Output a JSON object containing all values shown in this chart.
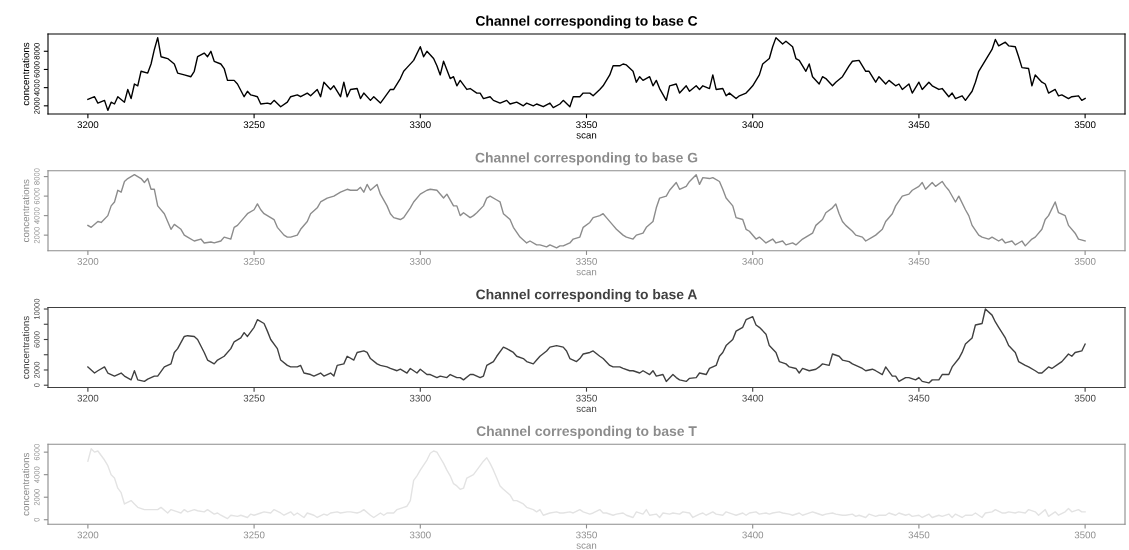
{
  "chart_data": [
    {
      "type": "line",
      "title": "Channel corresponding to base C",
      "xlabel": "scan",
      "ylabel": "concentrations",
      "xlim": [
        3188,
        3512
      ],
      "xticks": [
        3200,
        3250,
        3300,
        3350,
        3400,
        3450,
        3500
      ],
      "ylim": [
        1100,
        9900
      ],
      "yticks": [
        2000,
        4000,
        6000,
        8000
      ],
      "x": [
        3200,
        3202,
        3203,
        3205,
        3206,
        3207,
        3208,
        3209,
        3211,
        3212,
        3213,
        3214,
        3215,
        3216,
        3218,
        3219,
        3220,
        3221,
        3222,
        3224,
        3226,
        3227,
        3229,
        3231,
        3232,
        3233,
        3235,
        3236,
        3237,
        3238,
        3240,
        3241,
        3242,
        3244,
        3245,
        3247,
        3248,
        3249,
        3251,
        3252,
        3254,
        3255,
        3256,
        3258,
        3260,
        3261,
        3263,
        3264,
        3266,
        3267,
        3269,
        3270,
        3271,
        3273,
        3274,
        3276,
        3277,
        3278,
        3279,
        3281,
        3282,
        3283,
        3285,
        3286,
        3288,
        3289,
        3291,
        3292,
        3294,
        3295,
        3296,
        3298,
        3300,
        3301,
        3302,
        3304,
        3305,
        3306,
        3307,
        3309,
        3310,
        3311,
        3312,
        3314,
        3315,
        3317,
        3318,
        3319,
        3321,
        3322,
        3324,
        3326,
        3327,
        3329,
        3331,
        3332,
        3334,
        3335,
        3337,
        3339,
        3340,
        3342,
        3343,
        3345,
        3346,
        3348,
        3349,
        3351,
        3352,
        3354,
        3355,
        3357,
        3358,
        3360,
        3361,
        3362,
        3364,
        3365,
        3366,
        3367,
        3369,
        3370,
        3371,
        3372,
        3374,
        3375,
        3377,
        3378,
        3380,
        3381,
        3383,
        3384,
        3385,
        3387,
        3388,
        3389,
        3391,
        3392,
        3393,
        3395,
        3396,
        3398,
        3399,
        3400,
        3402,
        3403,
        3405,
        3406,
        3407,
        3409,
        3410,
        3412,
        3413,
        3414,
        3416,
        3417,
        3418,
        3420,
        3421,
        3422,
        3424,
        3425,
        3427,
        3429,
        3430,
        3432,
        3434,
        3435,
        3437,
        3438,
        3440,
        3441,
        3443,
        3444,
        3445,
        3447,
        3448,
        3450,
        3451,
        3453,
        3454,
        3456,
        3457,
        3459,
        3460,
        3461,
        3463,
        3464,
        3466,
        3467,
        3468,
        3470,
        3472,
        3473,
        3474,
        3476,
        3477,
        3479,
        3480,
        3481,
        3483,
        3484,
        3485,
        3487,
        3488,
        3489,
        3491,
        3492,
        3493,
        3495,
        3496,
        3498,
        3499,
        3500
      ],
      "series": [
        {
          "color": "#000000",
          "values": [
            2700,
            3000,
            2300,
            2600,
            1500,
            2400,
            2200,
            3000,
            2400,
            3800,
            2800,
            4400,
            4200,
            5800,
            5600,
            6600,
            8200,
            9500,
            7400,
            7200,
            6600,
            5600,
            5400,
            5200,
            5800,
            7400,
            7800,
            7400,
            8000,
            6900,
            6600,
            6100,
            4800,
            4800,
            4400,
            3000,
            3600,
            3200,
            3000,
            2200,
            2300,
            2200,
            2600,
            1900,
            2400,
            3000,
            3200,
            3000,
            3400,
            3100,
            3800,
            3000,
            4600,
            3800,
            4200,
            3000,
            4600,
            3000,
            3800,
            3900,
            2800,
            3400,
            2600,
            3000,
            2300,
            2800,
            3800,
            3800,
            5000,
            5800,
            6200,
            7000,
            8500,
            7400,
            8000,
            7200,
            6400,
            5400,
            6900,
            5000,
            5200,
            4200,
            4800,
            3800,
            3900,
            3400,
            3400,
            2800,
            3000,
            2600,
            2300,
            2600,
            2200,
            2400,
            2000,
            2300,
            2000,
            2200,
            1900,
            2300,
            1800,
            2200,
            2600,
            1900,
            3000,
            3000,
            3400,
            3400,
            3100,
            3800,
            4200,
            5400,
            6400,
            6400,
            6600,
            6500,
            5800,
            4600,
            5200,
            4800,
            5200,
            4200,
            4800,
            3900,
            2600,
            4200,
            4400,
            3400,
            4200,
            3600,
            4200,
            3800,
            4200,
            3900,
            5400,
            3800,
            3900,
            3100,
            3400,
            2800,
            3100,
            3400,
            3800,
            4200,
            5400,
            6600,
            7200,
            8500,
            9500,
            8800,
            9100,
            8500,
            7200,
            7000,
            5800,
            6600,
            5200,
            4400,
            5200,
            5000,
            4200,
            4600,
            5200,
            6400,
            6900,
            7000,
            5800,
            5800,
            4600,
            5200,
            4400,
            4800,
            4200,
            4400,
            3800,
            4400,
            3400,
            4600,
            3800,
            4600,
            4200,
            3800,
            3900,
            3000,
            3400,
            2800,
            3100,
            2600,
            3600,
            4600,
            5800,
            7000,
            8200,
            9300,
            8600,
            9000,
            8600,
            8500,
            7400,
            6200,
            6100,
            4200,
            5400,
            4600,
            4400,
            3400,
            3800,
            3100,
            3200,
            2800,
            3000,
            3100,
            2600,
            2800
          ]
        }
      ]
    },
    {
      "type": "line",
      "title": "Channel corresponding to base G",
      "xlabel": "scan",
      "ylabel": "concentrations",
      "xlim": [
        3188,
        3512
      ],
      "xticks": [
        3200,
        3250,
        3300,
        3350,
        3400,
        3450,
        3500
      ],
      "ylim": [
        400,
        8600
      ],
      "yticks": [
        2000,
        4000,
        6000,
        8000
      ],
      "x": [
        3200,
        3201,
        3203,
        3204,
        3206,
        3207,
        3208,
        3209,
        3210,
        3211,
        3212,
        3214,
        3216,
        3217,
        3218,
        3219,
        3220,
        3221,
        3223,
        3224,
        3225,
        3226,
        3228,
        3229,
        3230,
        3232,
        3234,
        3235,
        3237,
        3238,
        3240,
        3241,
        3243,
        3244,
        3245,
        3247,
        3248,
        3250,
        3251,
        3252,
        3253,
        3255,
        3256,
        3257,
        3259,
        3260,
        3261,
        3263,
        3264,
        3266,
        3267,
        3269,
        3270,
        3272,
        3274,
        3275,
        3276,
        3278,
        3279,
        3281,
        3282,
        3283,
        3284,
        3285,
        3287,
        3288,
        3290,
        3291,
        3292,
        3294,
        3295,
        3297,
        3298,
        3300,
        3302,
        3303,
        3305,
        3307,
        3308,
        3310,
        3311,
        3312,
        3313,
        3315,
        3316,
        3317,
        3319,
        3320,
        3321,
        3323,
        3324,
        3325,
        3327,
        3328,
        3330,
        3332,
        3333,
        3335,
        3336,
        3338,
        3339,
        3341,
        3342,
        3343,
        3345,
        3346,
        3348,
        3349,
        3351,
        3352,
        3354,
        3355,
        3356,
        3358,
        3359,
        3361,
        3362,
        3364,
        3365,
        3367,
        3368,
        3370,
        3371,
        3372,
        3374,
        3375,
        3377,
        3378,
        3380,
        3381,
        3383,
        3384,
        3385,
        3387,
        3388,
        3390,
        3391,
        3392,
        3394,
        3395,
        3397,
        3398,
        3399,
        3401,
        3402,
        3404,
        3406,
        3407,
        3409,
        3410,
        3412,
        3413,
        3415,
        3416,
        3418,
        3419,
        3421,
        3422,
        3424,
        3425,
        3426,
        3427,
        3428,
        3430,
        3431,
        3433,
        3434,
        3436,
        3437,
        3439,
        3440,
        3442,
        3443,
        3445,
        3447,
        3448,
        3450,
        3451,
        3452,
        3454,
        3455,
        3457,
        3458,
        3459,
        3461,
        3462,
        3464,
        3465,
        3466,
        3468,
        3469,
        3471,
        3472,
        3474,
        3475,
        3476,
        3478,
        3479,
        3481,
        3482,
        3484,
        3485,
        3487,
        3488,
        3489,
        3491,
        3492,
        3494,
        3495,
        3497,
        3498,
        3500
      ],
      "series": [
        {
          "color": "#8c8c8c",
          "values": [
            3000,
            2800,
            3400,
            3300,
            4000,
            5000,
            5400,
            6600,
            6400,
            7500,
            7800,
            8200,
            7800,
            7400,
            7800,
            6700,
            6700,
            5000,
            4200,
            3400,
            2600,
            3100,
            2600,
            2000,
            1800,
            1400,
            1600,
            1200,
            1300,
            1200,
            1400,
            1800,
            1600,
            2800,
            3000,
            3800,
            4200,
            4600,
            5200,
            4600,
            4200,
            3800,
            3600,
            2800,
            2000,
            1800,
            1800,
            2000,
            2600,
            3400,
            4200,
            4800,
            5400,
            5800,
            6000,
            6200,
            6400,
            6700,
            6600,
            6600,
            6900,
            6400,
            7200,
            6600,
            7200,
            6200,
            5000,
            4200,
            3800,
            3600,
            3800,
            4800,
            5400,
            6200,
            6600,
            6700,
            6600,
            5800,
            6200,
            5000,
            5000,
            4000,
            4300,
            3800,
            4000,
            4300,
            5000,
            5800,
            6000,
            5600,
            5400,
            4200,
            3600,
            2800,
            1800,
            1200,
            1400,
            1000,
            1000,
            800,
            1000,
            700,
            900,
            900,
            1200,
            1600,
            1800,
            2800,
            3300,
            3800,
            4000,
            4200,
            3800,
            3000,
            2600,
            2000,
            1800,
            1600,
            2000,
            2200,
            2800,
            3400,
            4800,
            5800,
            6000,
            6600,
            7400,
            6700,
            7000,
            7500,
            8200,
            7200,
            7900,
            7800,
            7900,
            7500,
            6700,
            5800,
            5000,
            3800,
            3600,
            2600,
            2400,
            1600,
            1800,
            1200,
            1600,
            1200,
            1400,
            1000,
            1200,
            1000,
            1600,
            1800,
            2200,
            3000,
            3600,
            4300,
            4800,
            5200,
            4200,
            3400,
            3000,
            2400,
            2000,
            1800,
            1400,
            1800,
            2000,
            2600,
            3400,
            4200,
            5000,
            6000,
            6200,
            6600,
            7000,
            7400,
            6700,
            7400,
            7000,
            7500,
            7000,
            6600,
            5400,
            6000,
            4600,
            4000,
            3000,
            2000,
            1800,
            1600,
            1800,
            1400,
            1600,
            1200,
            1400,
            1000,
            1400,
            900,
            1600,
            1800,
            2600,
            3600,
            4000,
            5400,
            4300,
            4000,
            3000,
            2200,
            1600,
            1400
          ]
        }
      ]
    },
    {
      "type": "line",
      "title": "Channel corresponding to base A",
      "xlabel": "scan",
      "ylabel": "concentrations",
      "xlim": [
        3188,
        3512
      ],
      "xticks": [
        3200,
        3250,
        3300,
        3350,
        3400,
        3450,
        3500
      ],
      "ylim": [
        -300,
        10200
      ],
      "yticks": [
        0,
        2000,
        {
          "value": 4000,
          "label": null
        },
        6000,
        {
          "value": 8000,
          "label": null
        },
        10000
      ],
      "x": [
        3200,
        3202,
        3203,
        3205,
        3206,
        3208,
        3210,
        3211,
        3213,
        3214,
        3215,
        3217,
        3218,
        3220,
        3221,
        3223,
        3225,
        3226,
        3227,
        3229,
        3230,
        3232,
        3233,
        3235,
        3236,
        3238,
        3239,
        3241,
        3243,
        3244,
        3246,
        3247,
        3248,
        3250,
        3251,
        3253,
        3254,
        3255,
        3257,
        3258,
        3260,
        3261,
        3263,
        3264,
        3265,
        3267,
        3268,
        3270,
        3271,
        3273,
        3274,
        3275,
        3277,
        3278,
        3280,
        3281,
        3283,
        3284,
        3285,
        3287,
        3288,
        3290,
        3291,
        3293,
        3294,
        3296,
        3297,
        3299,
        3300,
        3302,
        3303,
        3305,
        3306,
        3308,
        3309,
        3311,
        3312,
        3313,
        3315,
        3316,
        3318,
        3319,
        3320,
        3322,
        3323,
        3325,
        3326,
        3328,
        3329,
        3331,
        3332,
        3334,
        3335,
        3336,
        3338,
        3339,
        3341,
        3343,
        3344,
        3345,
        3347,
        3348,
        3349,
        3351,
        3352,
        3354,
        3355,
        3357,
        3358,
        3360,
        3361,
        3363,
        3364,
        3366,
        3367,
        3369,
        3370,
        3371,
        3373,
        3374,
        3376,
        3377,
        3378,
        3380,
        3381,
        3383,
        3384,
        3386,
        3387,
        3389,
        3390,
        3391,
        3392,
        3394,
        3395,
        3397,
        3398,
        3400,
        3401,
        3402,
        3404,
        3405,
        3407,
        3408,
        3410,
        3411,
        3413,
        3414,
        3415,
        3417,
        3419,
        3420,
        3421,
        3423,
        3424,
        3426,
        3427,
        3429,
        3430,
        3431,
        3433,
        3434,
        3436,
        3437,
        3439,
        3440,
        3442,
        3443,
        3444,
        3446,
        3447,
        3449,
        3450,
        3451,
        3453,
        3454,
        3456,
        3457,
        3459,
        3460,
        3462,
        3463,
        3464,
        3466,
        3467,
        3469,
        3470,
        3472,
        3473,
        3474,
        3476,
        3477,
        3479,
        3480,
        3482,
        3483,
        3485,
        3486,
        3487,
        3489,
        3490,
        3492,
        3493,
        3495,
        3496,
        3497,
        3499,
        3500
      ],
      "series": [
        {
          "color": "#404040",
          "values": [
            2400,
            1600,
            1900,
            2400,
            1600,
            1200,
            1600,
            1200,
            700,
            1900,
            700,
            500,
            800,
            1200,
            1200,
            2400,
            2800,
            4300,
            4800,
            6400,
            6500,
            6400,
            6000,
            4300,
            3300,
            2800,
            3300,
            3800,
            4800,
            5700,
            6200,
            6900,
            6400,
            7600,
            8600,
            8100,
            7100,
            6000,
            4800,
            3300,
            2600,
            2400,
            2400,
            2600,
            1600,
            1400,
            1200,
            1600,
            1200,
            1600,
            1200,
            2600,
            2800,
            3800,
            3300,
            4300,
            4500,
            4300,
            3500,
            2800,
            2600,
            2400,
            2200,
            1900,
            2100,
            1600,
            2200,
            1600,
            2100,
            1400,
            1400,
            1000,
            1200,
            1000,
            1400,
            1000,
            1000,
            700,
            1400,
            1400,
            1000,
            1200,
            2600,
            3100,
            3800,
            5000,
            4800,
            4300,
            3800,
            3500,
            3100,
            2800,
            3300,
            3800,
            4500,
            5000,
            5200,
            5000,
            4500,
            3500,
            3100,
            3500,
            4100,
            4300,
            4500,
            3800,
            3500,
            2600,
            2400,
            2400,
            2200,
            1900,
            1900,
            1600,
            1900,
            1400,
            1900,
            1200,
            1400,
            500,
            1400,
            1000,
            700,
            500,
            900,
            1000,
            1600,
            1400,
            2200,
            2600,
            3800,
            4300,
            5200,
            6000,
            7100,
            7600,
            8600,
            9000,
            7900,
            7600,
            6700,
            5200,
            4300,
            3100,
            2800,
            2400,
            2200,
            1600,
            2200,
            1900,
            2100,
            2400,
            2800,
            2600,
            4100,
            3800,
            3300,
            3100,
            2800,
            2600,
            2200,
            1900,
            2100,
            1900,
            1400,
            2400,
            1200,
            1200,
            500,
            1000,
            1000,
            700,
            1000,
            500,
            300,
            700,
            700,
            1400,
            1400,
            2400,
            3500,
            4300,
            5400,
            6200,
            7900,
            8100,
            10000,
            9200,
            8300,
            7600,
            6200,
            5200,
            4300,
            3100,
            2600,
            2400,
            1900,
            1600,
            1600,
            2400,
            2200,
            2800,
            3100,
            4100,
            3800,
            4300,
            4500,
            5400
          ]
        }
      ]
    },
    {
      "type": "line",
      "title": "Channel corresponding to base T",
      "xlabel": "scan",
      "ylabel": "concentrations",
      "xlim": [
        3188,
        3512
      ],
      "xticks": [
        3200,
        3250,
        3300,
        3350,
        3400,
        3450,
        3500
      ],
      "ylim": [
        -400,
        6700
      ],
      "yticks": [
        0,
        2000,
        4000,
        6000
      ],
      "x": [
        3200,
        3201,
        3202,
        3203,
        3205,
        3206,
        3207,
        3208,
        3209,
        3210,
        3211,
        3213,
        3214,
        3215,
        3217,
        3218,
        3220,
        3221,
        3222,
        3224,
        3225,
        3227,
        3228,
        3229,
        3230,
        3232,
        3233,
        3235,
        3236,
        3238,
        3239,
        3240,
        3242,
        3243,
        3245,
        3246,
        3248,
        3249,
        3250,
        3252,
        3253,
        3255,
        3256,
        3258,
        3259,
        3261,
        3262,
        3263,
        3265,
        3266,
        3268,
        3269,
        3271,
        3272,
        3273,
        3275,
        3276,
        3278,
        3279,
        3281,
        3282,
        3283,
        3285,
        3286,
        3288,
        3289,
        3290,
        3292,
        3293,
        3295,
        3296,
        3297,
        3298,
        3299,
        3300,
        3302,
        3303,
        3304,
        3305,
        3306,
        3307,
        3308,
        3309,
        3310,
        3311,
        3312,
        3313,
        3314,
        3316,
        3317,
        3318,
        3319,
        3320,
        3321,
        3322,
        3323,
        3324,
        3325,
        3327,
        3328,
        3329,
        3331,
        3332,
        3334,
        3335,
        3336,
        3337,
        3339,
        3341,
        3342,
        3343,
        3345,
        3346,
        3348,
        3349,
        3351,
        3352,
        3354,
        3355,
        3356,
        3358,
        3359,
        3361,
        3362,
        3364,
        3365,
        3367,
        3368,
        3369,
        3371,
        3372,
        3373,
        3375,
        3376,
        3378,
        3379,
        3381,
        3382,
        3384,
        3385,
        3386,
        3388,
        3389,
        3391,
        3392,
        3394,
        3395,
        3397,
        3398,
        3399,
        3401,
        3402,
        3404,
        3405,
        3406,
        3408,
        3409,
        3411,
        3412,
        3414,
        3415,
        3416,
        3418,
        3419,
        3421,
        3422,
        3424,
        3425,
        3427,
        3428,
        3430,
        3431,
        3432,
        3434,
        3435,
        3437,
        3438,
        3440,
        3441,
        3443,
        3444,
        3446,
        3447,
        3448,
        3450,
        3451,
        3453,
        3454,
        3456,
        3457,
        3459,
        3460,
        3461,
        3463,
        3464,
        3466,
        3467,
        3469,
        3470,
        3472,
        3473,
        3475,
        3476,
        3477,
        3479,
        3480,
        3482,
        3483,
        3485,
        3486,
        3488,
        3489,
        3491,
        3492,
        3494,
        3495,
        3496,
        3498,
        3499,
        3500
      ],
      "series": [
        {
          "color": "#e3e3e3",
          "values": [
            5200,
            6300,
            6000,
            6100,
            5300,
            4800,
            4000,
            3700,
            2800,
            2400,
            1400,
            1700,
            1400,
            1100,
            900,
            900,
            900,
            900,
            1100,
            600,
            900,
            700,
            600,
            900,
            700,
            900,
            800,
            700,
            900,
            500,
            600,
            400,
            100,
            400,
            300,
            400,
            200,
            500,
            400,
            600,
            700,
            600,
            900,
            600,
            400,
            700,
            400,
            600,
            200,
            600,
            400,
            200,
            500,
            400,
            600,
            700,
            600,
            700,
            700,
            600,
            700,
            900,
            400,
            200,
            600,
            400,
            600,
            600,
            900,
            1100,
            1200,
            1700,
            3500,
            3900,
            4400,
            5300,
            5900,
            6100,
            6000,
            5500,
            5000,
            4400,
            3900,
            3200,
            3000,
            2700,
            2800,
            3700,
            4000,
            4400,
            4800,
            5200,
            5500,
            5000,
            4400,
            3700,
            3000,
            2700,
            2200,
            1700,
            1700,
            1400,
            1100,
            900,
            700,
            900,
            400,
            600,
            700,
            600,
            600,
            700,
            600,
            900,
            700,
            500,
            600,
            900,
            600,
            600,
            400,
            500,
            600,
            400,
            200,
            700,
            500,
            900,
            400,
            500,
            200,
            600,
            500,
            600,
            500,
            700,
            600,
            200,
            500,
            600,
            400,
            700,
            500,
            400,
            700,
            500,
            400,
            600,
            400,
            600,
            700,
            500,
            600,
            500,
            600,
            700,
            600,
            500,
            400,
            600,
            400,
            500,
            700,
            600,
            400,
            500,
            600,
            500,
            400,
            400,
            500,
            300,
            400,
            200,
            500,
            300,
            400,
            400,
            600,
            400,
            600,
            400,
            500,
            300,
            400,
            200,
            500,
            200,
            400,
            300,
            500,
            200,
            500,
            200,
            400,
            400,
            600,
            200,
            600,
            700,
            900,
            600,
            600,
            700,
            600,
            700,
            600,
            900,
            700,
            400,
            900,
            300,
            700,
            400,
            700,
            1000,
            700,
            900,
            700,
            700
          ]
        }
      ]
    }
  ]
}
